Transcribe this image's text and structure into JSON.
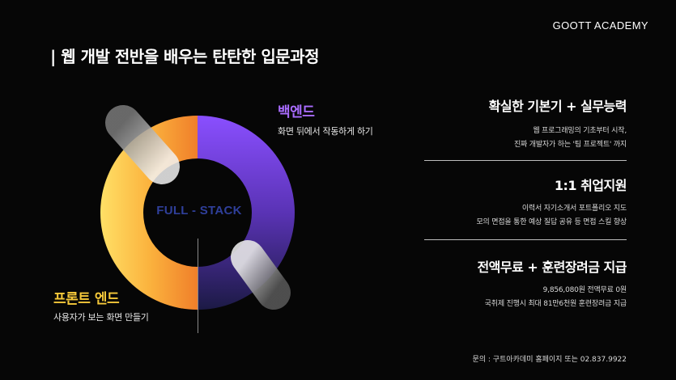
{
  "brand": {
    "logo_text": "GOOTT ACADEMY"
  },
  "headline": "| 웹 개발 전반을 배우는 탄탄한 입문과정",
  "diagram": {
    "center_label": "FULL - STACK",
    "backend": {
      "title": "백엔드",
      "subtitle": "화면 뒤에서 작동하게 하기",
      "color": "#a96cff"
    },
    "frontend": {
      "title": "프론트 엔드",
      "subtitle": "사용자가 보는 화면 만들기",
      "color": "#f6c93a"
    },
    "ring_colors": {
      "backend_start": "#8a4fff",
      "backend_end": "#1c1a45",
      "frontend_start": "#ffe066",
      "frontend_end": "#f07f2a"
    }
  },
  "features": [
    {
      "title": "확실한 기본기 + 실무능력",
      "lines": [
        "웹 프로그래밍의 기초부터 시작,",
        "진짜 개발자가 하는 '팀 프로젝트' 까지"
      ]
    },
    {
      "title": "1:1 취업지원",
      "lines": [
        "이력서 자기소개서 포트폴리오 지도",
        "모의 면접을 통한 예상 질답 공유 등 면접 스킬 향상"
      ]
    },
    {
      "title": "전액무료 + 훈련장려금 지급",
      "lines": [
        "9,856,080원 전액무료 0원",
        "국취제 진행시 최대 81만6천원 훈련장려금 지급"
      ]
    }
  ],
  "footer": "문의 : 구트아카데미 홈페이지 또는 02.837.9922"
}
